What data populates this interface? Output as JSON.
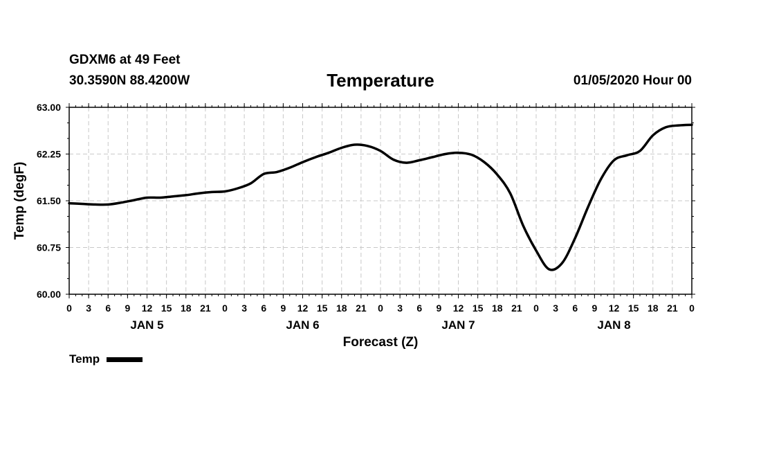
{
  "header": {
    "station": "GDXM6 at 49 Feet",
    "coords": "30.3590N 88.4200W",
    "title": "Temperature",
    "datetime": "01/05/2020 Hour 00"
  },
  "chart_data": {
    "type": "line",
    "title": "Temperature",
    "xlabel": "Forecast (Z)",
    "ylabel": "Temp (degF)",
    "ylim": [
      60.0,
      63.0
    ],
    "yticks": [
      "60.00",
      "60.75",
      "61.50",
      "62.25",
      "63.00"
    ],
    "xlim": [
      0,
      96
    ],
    "xtick_labels": [
      "0",
      "3",
      "6",
      "9",
      "12",
      "15",
      "18",
      "21",
      "0",
      "3",
      "6",
      "9",
      "12",
      "15",
      "18",
      "21",
      "0",
      "3",
      "6",
      "9",
      "12",
      "15",
      "18",
      "21",
      "0",
      "3",
      "6",
      "9",
      "12",
      "15",
      "18",
      "21",
      "0"
    ],
    "day_labels": [
      {
        "label": "JAN 5",
        "hour": 12
      },
      {
        "label": "JAN 6",
        "hour": 36
      },
      {
        "label": "JAN 7",
        "hour": 60
      },
      {
        "label": "JAN 8",
        "hour": 84
      }
    ],
    "grid": true,
    "legend": "bottom-left",
    "series": [
      {
        "name": "Temp",
        "color": "#000000",
        "x": [
          0,
          2,
          4,
          6,
          8,
          10,
          12,
          14,
          16,
          18,
          20,
          22,
          24,
          26,
          28,
          30,
          32,
          34,
          36,
          38,
          40,
          42,
          44,
          46,
          48,
          50,
          52,
          54,
          56,
          58,
          60,
          62,
          64,
          66,
          68,
          70,
          72,
          74,
          76,
          78,
          80,
          82,
          84,
          86,
          88,
          90,
          92,
          94,
          96
        ],
        "y": [
          61.46,
          61.45,
          61.44,
          61.44,
          61.47,
          61.51,
          61.55,
          61.55,
          61.57,
          61.59,
          61.62,
          61.64,
          61.65,
          61.7,
          61.78,
          61.93,
          61.96,
          62.03,
          62.12,
          62.2,
          62.27,
          62.35,
          62.4,
          62.38,
          62.3,
          62.16,
          62.11,
          62.15,
          62.2,
          62.25,
          62.27,
          62.24,
          62.12,
          61.92,
          61.62,
          61.1,
          60.7,
          60.4,
          60.5,
          60.9,
          61.4,
          61.85,
          62.15,
          62.23,
          62.3,
          62.55,
          62.68,
          62.71,
          62.72
        ]
      }
    ]
  }
}
